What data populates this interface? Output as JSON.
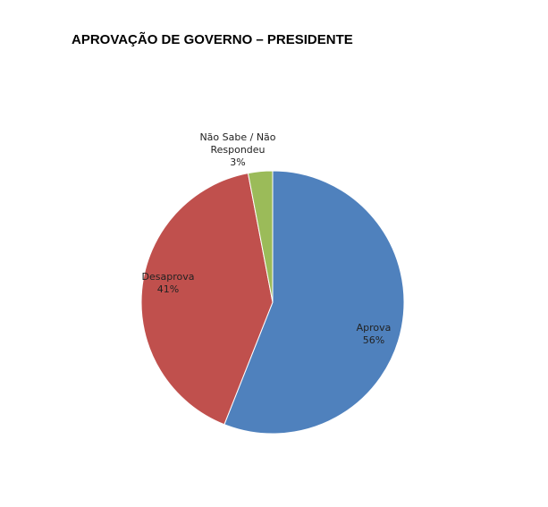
{
  "chart_data": {
    "type": "pie",
    "title": "APROVAÇÃO DE GOVERNO – PRESIDENTE",
    "categories": [
      "Aprova",
      "Desaprova",
      "Não Sabe / Não Respondeu"
    ],
    "values": [
      56,
      41,
      3
    ],
    "value_labels": [
      "56%",
      "41%",
      "3%"
    ],
    "colors": [
      "#4f81bd",
      "#c0504d",
      "#9bbb59"
    ]
  }
}
